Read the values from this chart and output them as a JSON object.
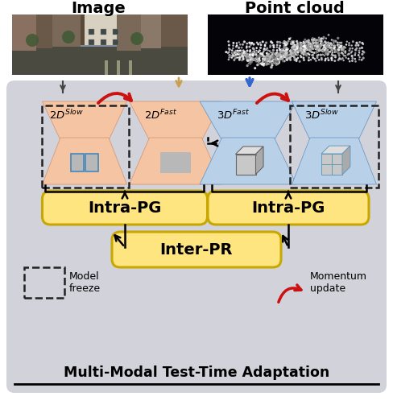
{
  "fig_width": 4.88,
  "fig_height": 5.18,
  "dpi": 100,
  "bg_color": "#d2d2da",
  "orange_color": "#f5c5a3",
  "blue_color": "#b8d0e8",
  "yellow_color": "#ffe580",
  "yellow_border": "#c8a800",
  "red_arrow": "#cc1111",
  "blue_arrow": "#3366cc",
  "tan_arrow": "#c8a050",
  "black": "#111111",
  "title": "Multi-Modal Test-Time Adaptation",
  "intra_pg": "Intra-PG",
  "inter_pr": "Inter-PR",
  "model_freeze": "Model\nfreeze",
  "momentum_update": "Momentum\nupdate",
  "label_image": "Image",
  "label_pc": "Point cloud"
}
